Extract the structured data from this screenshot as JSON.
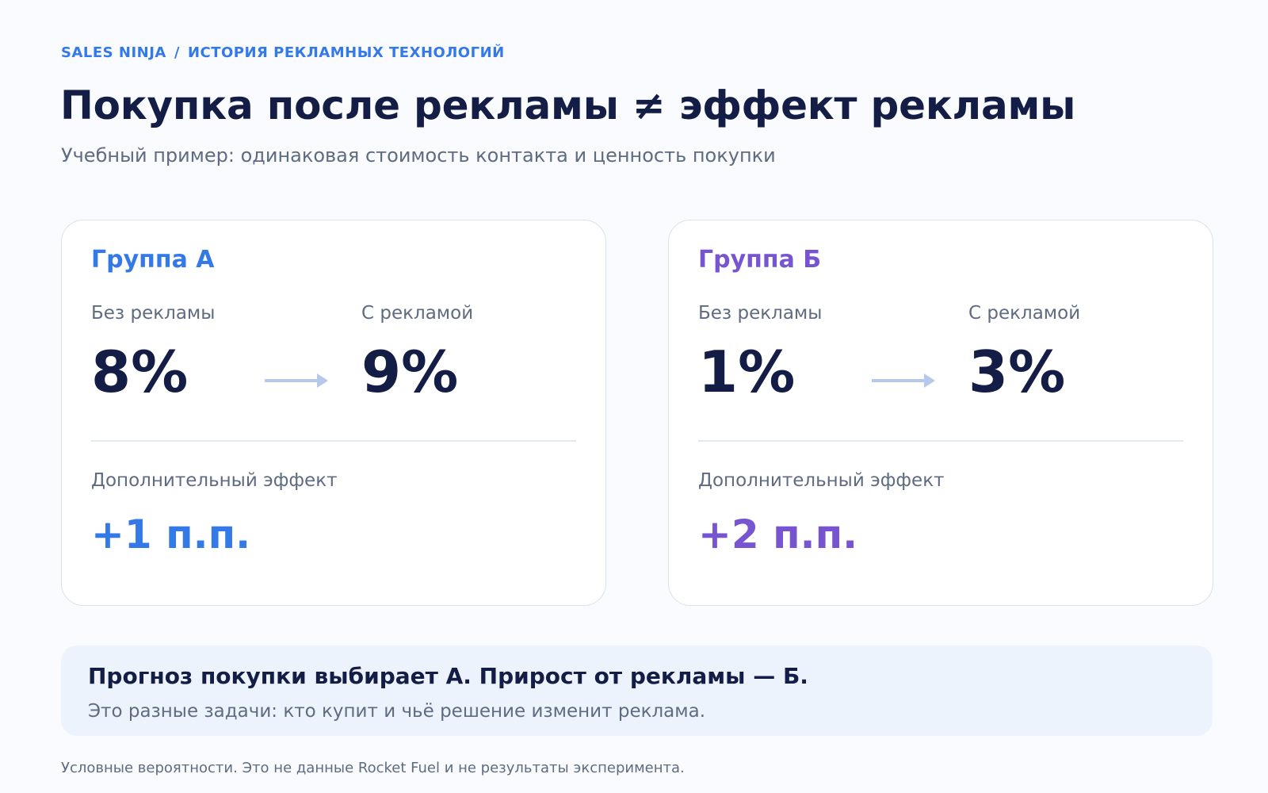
{
  "breadcrumb": {
    "brand": "SALES NINJA",
    "separator": "/",
    "section": "ИСТОРИЯ РЕКЛАМНЫХ ТЕХНОЛОГИЙ"
  },
  "header": {
    "title": "Покупка после рекламы ≠ эффект рекламы",
    "subtitle": "Учебный пример: одинаковая стоимость контакта и ценность покупки"
  },
  "colors": {
    "group_a": "#3479e8",
    "group_b": "#7754d0",
    "text_dark": "#131d45",
    "text_muted": "#5f6b82",
    "arrow": "#b7c9ea"
  },
  "groups": [
    {
      "title": "Группа А",
      "without_label": "Без рекламы",
      "without_value": "8%",
      "with_label": "С рекламой",
      "with_value": "9%",
      "effect_label": "Дополнительный эффект",
      "effect_value": "+1 п.п."
    },
    {
      "title": "Группа Б",
      "without_label": "Без рекламы",
      "without_value": "1%",
      "with_label": "С рекламой",
      "with_value": "3%",
      "effect_label": "Дополнительный эффект",
      "effect_value": "+2 п.п."
    }
  ],
  "callout": {
    "title": "Прогноз покупки выбирает А. Прирост от рекламы — Б.",
    "text": "Это разные задачи: кто купит и чьё решение изменит реклама."
  },
  "footnote": "Условные вероятности. Это не данные Rocket Fuel и не результаты эксперимента."
}
